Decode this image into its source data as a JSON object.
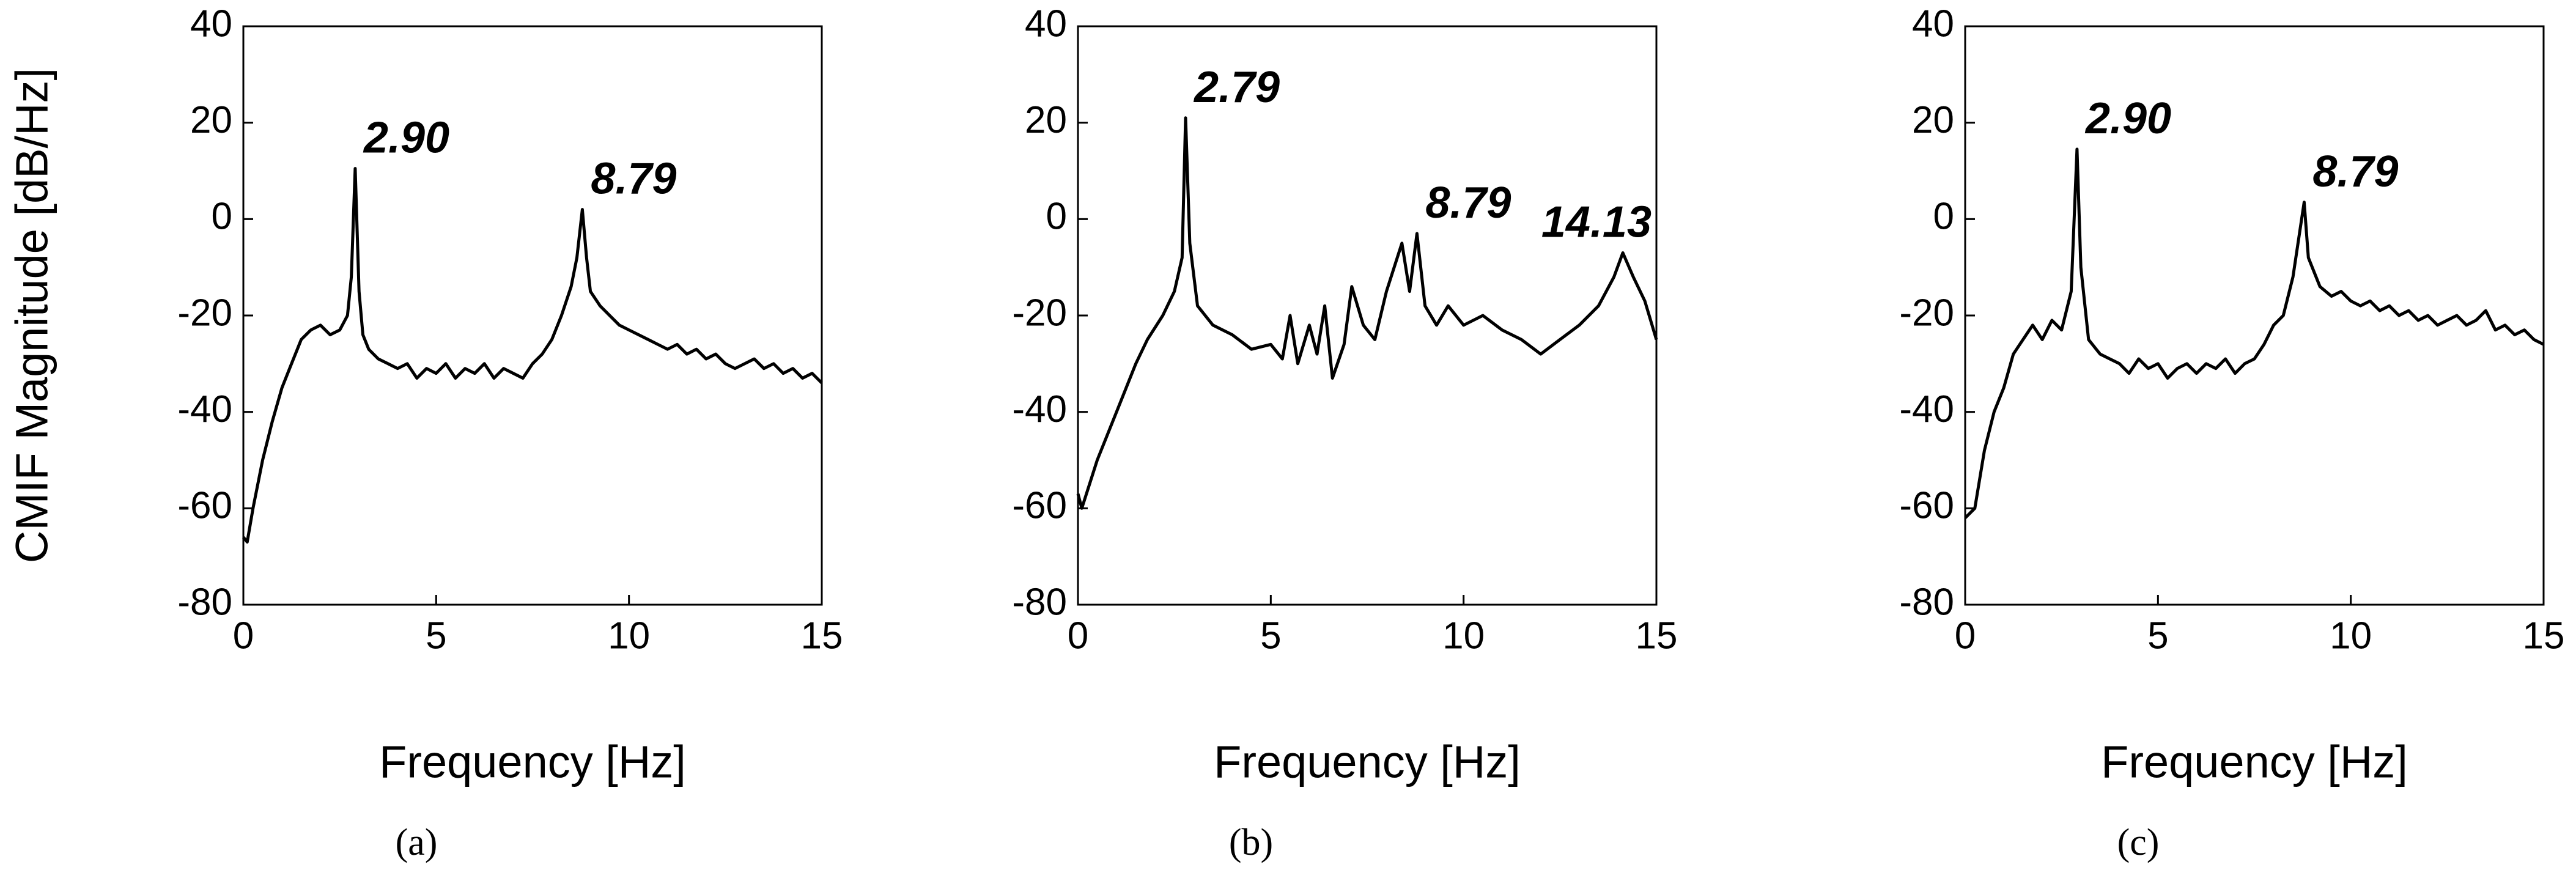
{
  "chart_data": [
    {
      "type": "line",
      "label": "(a)",
      "xlabel": "Frequency [Hz]",
      "ylabel": "CMIF Magnitude [dB/Hz]",
      "xlim": [
        0,
        15
      ],
      "xticks": [
        0,
        5,
        10,
        15
      ],
      "ylim": [
        -80,
        40
      ],
      "yticks": [
        -80,
        -60,
        -40,
        -20,
        0,
        20,
        40
      ],
      "color": "#000000",
      "x": [
        0,
        0.1,
        0.25,
        0.5,
        0.75,
        1,
        1.25,
        1.5,
        1.75,
        2,
        2.25,
        2.5,
        2.7,
        2.8,
        2.9,
        3.0,
        3.1,
        3.25,
        3.5,
        3.75,
        4,
        4.25,
        4.5,
        4.75,
        5,
        5.25,
        5.5,
        5.75,
        6,
        6.25,
        6.5,
        6.75,
        7,
        7.25,
        7.5,
        7.75,
        8,
        8.25,
        8.5,
        8.65,
        8.79,
        8.9,
        9.0,
        9.25,
        9.5,
        9.75,
        10,
        10.25,
        10.5,
        10.75,
        11,
        11.25,
        11.5,
        11.75,
        12,
        12.25,
        12.5,
        12.75,
        13,
        13.25,
        13.5,
        13.75,
        14,
        14.25,
        14.5,
        14.75,
        15
      ],
      "values": [
        -66,
        -67,
        -60,
        -50,
        -42,
        -35,
        -30,
        -25,
        -23,
        -22,
        -24,
        -23,
        -20,
        -12,
        10.5,
        -15,
        -24,
        -27,
        -29,
        -30,
        -31,
        -30,
        -33,
        -31,
        -32,
        -30,
        -33,
        -31,
        -32,
        -30,
        -33,
        -31,
        -32,
        -33,
        -30,
        -28,
        -25,
        -20,
        -14,
        -8,
        2,
        -8,
        -15,
        -18,
        -20,
        -22,
        -23,
        -24,
        -25,
        -26,
        -27,
        -26,
        -28,
        -27,
        -29,
        -28,
        -30,
        -31,
        -30,
        -29,
        -31,
        -30,
        -32,
        -31,
        -33,
        -32,
        -34
      ],
      "annotations": [
        {
          "text": "2.90",
          "x": 2.9,
          "y": 10.5
        },
        {
          "text": "8.79",
          "x": 8.79,
          "y": 2
        }
      ]
    },
    {
      "type": "line",
      "label": "(b)",
      "xlabel": "Frequency [Hz]",
      "xlim": [
        0,
        15
      ],
      "xticks": [
        0,
        5,
        10,
        15
      ],
      "ylim": [
        -80,
        40
      ],
      "yticks": [
        -80,
        -60,
        -40,
        -20,
        0,
        20,
        40
      ],
      "color": "#000000",
      "x": [
        0,
        0.1,
        0.5,
        1,
        1.5,
        1.8,
        2.2,
        2.5,
        2.7,
        2.79,
        2.9,
        3.1,
        3.5,
        4,
        4.5,
        5,
        5.3,
        5.5,
        5.7,
        6,
        6.2,
        6.4,
        6.6,
        6.9,
        7.1,
        7.4,
        7.7,
        8,
        8.4,
        8.6,
        8.79,
        9,
        9.3,
        9.6,
        10,
        10.5,
        11,
        11.5,
        12,
        12.5,
        13,
        13.5,
        13.9,
        14.13,
        14.4,
        14.7,
        15
      ],
      "values": [
        -57,
        -60,
        -50,
        -40,
        -30,
        -25,
        -20,
        -15,
        -8,
        21,
        -5,
        -18,
        -22,
        -24,
        -27,
        -26,
        -29,
        -20,
        -30,
        -22,
        -28,
        -18,
        -33,
        -26,
        -14,
        -22,
        -25,
        -15,
        -5,
        -15,
        -3,
        -18,
        -22,
        -18,
        -22,
        -20,
        -23,
        -25,
        -28,
        -25,
        -22,
        -18,
        -12,
        -7,
        -12,
        -17,
        -25
      ],
      "annotations": [
        {
          "text": "2.79",
          "x": 2.79,
          "y": 21
        },
        {
          "text": "8.79",
          "x": 8.79,
          "y": -3
        },
        {
          "text": "14.13",
          "x": 14.13,
          "y": -7
        }
      ]
    },
    {
      "type": "line",
      "label": "(c)",
      "xlabel": "Frequency [Hz]",
      "xlim": [
        0,
        15
      ],
      "xticks": [
        0,
        5,
        10,
        15
      ],
      "ylim": [
        -80,
        40
      ],
      "yticks": [
        -80,
        -60,
        -40,
        -20,
        0,
        20,
        40
      ],
      "color": "#000000",
      "x": [
        0,
        0.25,
        0.5,
        0.75,
        1,
        1.25,
        1.5,
        1.75,
        2,
        2.25,
        2.5,
        2.75,
        2.9,
        3.0,
        3.2,
        3.5,
        3.75,
        4,
        4.25,
        4.5,
        4.75,
        5,
        5.25,
        5.5,
        5.75,
        6,
        6.25,
        6.5,
        6.75,
        7,
        7.25,
        7.5,
        7.75,
        8,
        8.25,
        8.5,
        8.79,
        8.9,
        9.2,
        9.5,
        9.75,
        10,
        10.25,
        10.5,
        10.75,
        11,
        11.25,
        11.5,
        11.75,
        12,
        12.25,
        12.5,
        12.75,
        13,
        13.25,
        13.5,
        13.75,
        14,
        14.25,
        14.5,
        14.75,
        15
      ],
      "values": [
        -62,
        -60,
        -48,
        -40,
        -35,
        -28,
        -25,
        -22,
        -25,
        -21,
        -23,
        -15,
        14.5,
        -10,
        -25,
        -28,
        -29,
        -30,
        -32,
        -29,
        -31,
        -30,
        -33,
        -31,
        -30,
        -32,
        -30,
        -31,
        -29,
        -32,
        -30,
        -29,
        -26,
        -22,
        -20,
        -12,
        3.5,
        -8,
        -14,
        -16,
        -15,
        -17,
        -18,
        -17,
        -19,
        -18,
        -20,
        -19,
        -21,
        -20,
        -22,
        -21,
        -20,
        -22,
        -21,
        -19,
        -23,
        -22,
        -24,
        -23,
        -25,
        -26
      ],
      "annotations": [
        {
          "text": "2.90",
          "x": 2.9,
          "y": 14.5
        },
        {
          "text": "8.79",
          "x": 8.79,
          "y": 3.5
        }
      ]
    }
  ]
}
